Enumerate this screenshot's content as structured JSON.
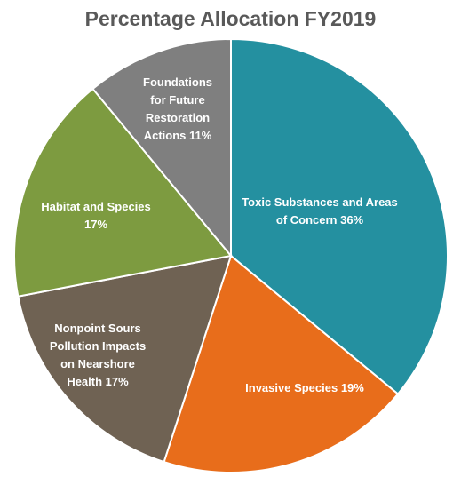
{
  "chart_data": {
    "type": "pie",
    "title": "Percentage Allocation FY2019",
    "slices": [
      {
        "label": "Toxic Substances and Areas\nof Concern 36%",
        "value": 36,
        "color": "#2490A0"
      },
      {
        "label": "Invasive Species 19%",
        "value": 19,
        "color": "#E86D1B"
      },
      {
        "label": "Nonpoint Sours\nPollution Impacts\non Nearshore\nHealth 17%",
        "value": 17,
        "color": "#6F6253"
      },
      {
        "label": "Habitat and Species\n17%",
        "value": 17,
        "color": "#7D9B40"
      },
      {
        "label": "Foundations\nfor Future\nRestoration\nActions 11%",
        "value": 11,
        "color": "#7F7F7F"
      }
    ],
    "start_angle": "12 o'clock",
    "direction": "clockwise",
    "legend": "none"
  }
}
